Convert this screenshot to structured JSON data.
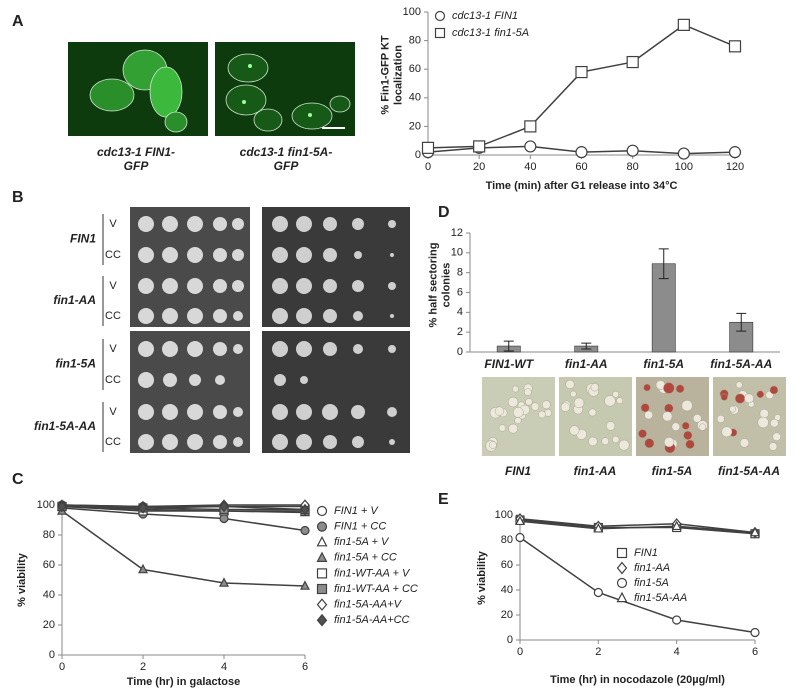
{
  "figure": {
    "letters": [
      "A",
      "B",
      "C",
      "D",
      "E"
    ],
    "a_captions": [
      [
        "cdc13-1 FIN1-",
        "GFP"
      ],
      [
        "cdc13-1 fin1-5A-",
        "GFP"
      ]
    ],
    "b_strains": [
      "FIN1",
      "fin1-AA",
      "fin1-5A",
      "fin1-5A-AA"
    ],
    "b_conditions": [
      "V",
      "CC"
    ],
    "d_captions": [
      "FIN1",
      "fin1-AA",
      "fin1-5A",
      "fin1-5A-AA"
    ]
  },
  "chart_data": [
    {
      "type": "line",
      "x_label": "Time (min) after G1 release into 34°C",
      "y_label": [
        "% Fin1-GFP KT",
        "localization"
      ],
      "x": [
        0,
        20,
        40,
        60,
        80,
        100,
        120
      ],
      "xlim": [
        0,
        120
      ],
      "xticks": [
        0,
        20,
        40,
        60,
        80,
        100,
        120
      ],
      "ylim": [
        0,
        100
      ],
      "yticks": [
        0,
        20,
        40,
        60,
        80,
        100
      ],
      "legend": "top-left",
      "series": [
        {
          "name": "cdc13-1 FIN1",
          "color": "#404040",
          "fill": "#ffffff",
          "marker": "circle",
          "values": [
            2,
            5,
            6,
            2,
            3,
            1,
            2
          ]
        },
        {
          "name": "cdc13-1 fin1-5A",
          "color": "#404040",
          "fill": "#ffffff",
          "marker": "square",
          "values": [
            5,
            6,
            20,
            58,
            65,
            91,
            76
          ]
        }
      ]
    },
    {
      "type": "bar",
      "y_label": [
        "% half sectoring",
        "colonies"
      ],
      "categories": [
        "FIN1-WT",
        "fin1-AA",
        "fin1-5A",
        "fin1-5A-AA"
      ],
      "values": [
        0.6,
        0.6,
        8.9,
        3.0
      ],
      "errors": [
        0.5,
        0.3,
        1.5,
        0.9
      ],
      "color": "#8c8c8c",
      "ylim": [
        0,
        12
      ],
      "yticks": [
        0,
        2,
        4,
        6,
        8,
        10,
        12
      ]
    },
    {
      "type": "line",
      "x_label": "Time (hr) in galactose",
      "y_label": [
        "% viability"
      ],
      "x": [
        0,
        2,
        4,
        6
      ],
      "xlim": [
        0,
        6
      ],
      "xticks": [
        0,
        2,
        4,
        6
      ],
      "ylim": [
        0,
        100
      ],
      "yticks": [
        0,
        20,
        40,
        60,
        80,
        100
      ],
      "legend": "right",
      "series": [
        {
          "name": "FIN1 + V",
          "color": "#404040",
          "fill": "#ffffff",
          "marker": "circle",
          "values": [
            100,
            99,
            99,
            99
          ]
        },
        {
          "name": "FIN1 + CC",
          "color": "#404040",
          "fill": "#8c8c8c",
          "marker": "circle",
          "values": [
            98,
            94,
            91,
            83
          ]
        },
        {
          "name": "fin1-5A + V",
          "color": "#404040",
          "fill": "#ffffff",
          "marker": "triangle",
          "values": [
            99,
            97,
            96,
            95
          ]
        },
        {
          "name": "fin1-5A + CC",
          "color": "#404040",
          "fill": "#8c8c8c",
          "marker": "triangle",
          "values": [
            96,
            57,
            48,
            46
          ]
        },
        {
          "name": "fin1-WT-AA + V",
          "color": "#404040",
          "fill": "#ffffff",
          "marker": "square",
          "values": [
            99,
            96,
            96,
            96
          ]
        },
        {
          "name": "fin1-WT-AA + CC",
          "color": "#404040",
          "fill": "#8c8c8c",
          "marker": "square",
          "values": [
            99,
            98,
            97,
            97
          ]
        },
        {
          "name": "fin1-5A-AA+V",
          "color": "#404040",
          "fill": "#ffffff",
          "marker": "diamond",
          "values": [
            100,
            99,
            100,
            100
          ]
        },
        {
          "name": "fin1-5A-AA+CC",
          "color": "#404040",
          "fill": "#505050",
          "marker": "diamond",
          "values": [
            99,
            98,
            99,
            97
          ]
        }
      ]
    },
    {
      "type": "line",
      "x_label": "Time (hr) in nocodazole (20µg/ml)",
      "y_label": [
        "% viability"
      ],
      "x": [
        0,
        2,
        4,
        6
      ],
      "xlim": [
        0,
        6
      ],
      "xticks": [
        0,
        2,
        4,
        6
      ],
      "ylim": [
        0,
        100
      ],
      "yticks": [
        0,
        20,
        40,
        60,
        80,
        100
      ],
      "legend": "right",
      "series": [
        {
          "name": "FIN1",
          "color": "#404040",
          "fill": "#ffffff",
          "marker": "square",
          "values": [
            96,
            90,
            90,
            85
          ]
        },
        {
          "name": "fin1-AA",
          "color": "#404040",
          "fill": "#ffffff",
          "marker": "diamond",
          "values": [
            97,
            91,
            93,
            86
          ]
        },
        {
          "name": "fin1-5A",
          "color": "#404040",
          "fill": "#ffffff",
          "marker": "circle",
          "values": [
            82,
            38,
            16,
            6
          ]
        },
        {
          "name": "fin1-5A-AA",
          "color": "#404040",
          "fill": "#ffffff",
          "marker": "triangle",
          "values": [
            95,
            89,
            91,
            86
          ]
        }
      ]
    }
  ]
}
